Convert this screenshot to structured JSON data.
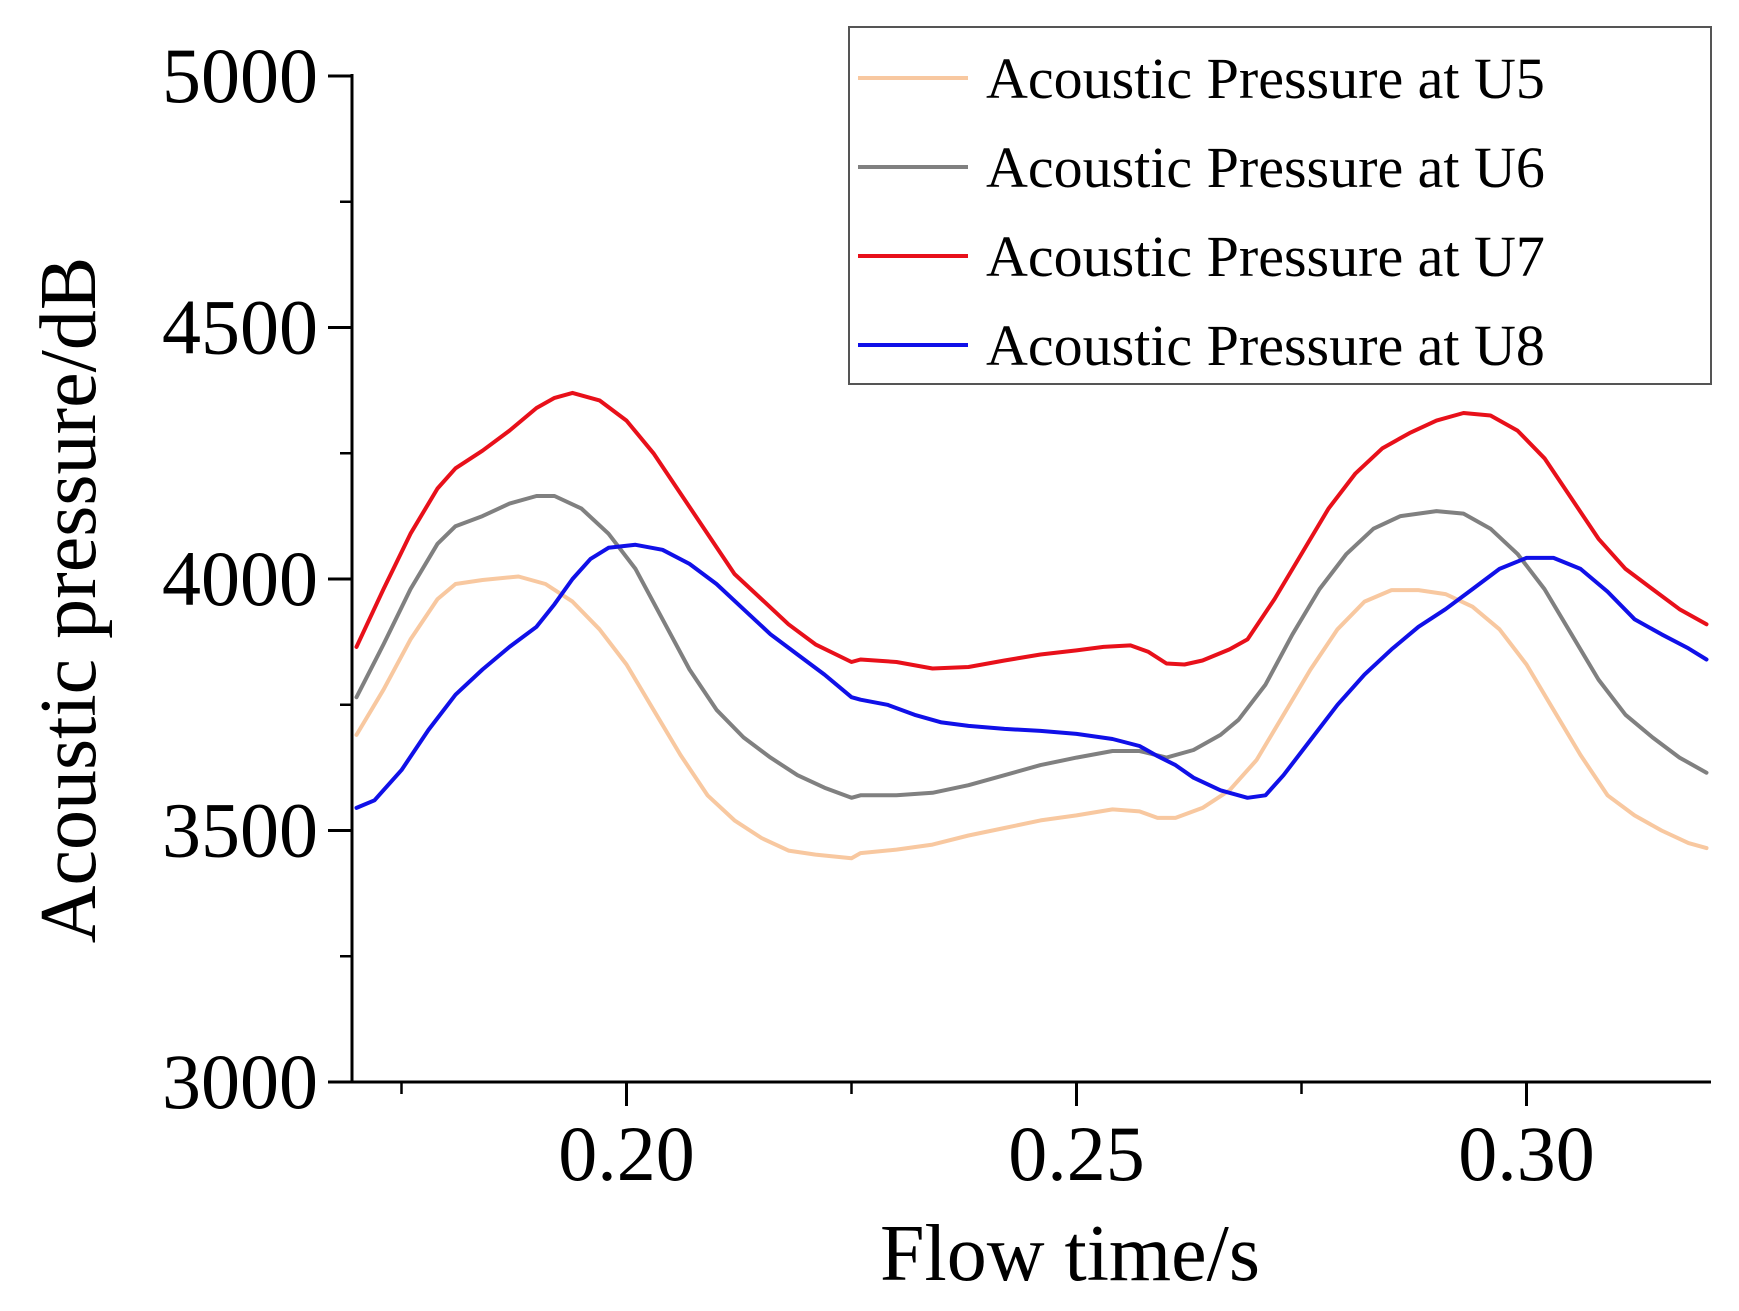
{
  "chart_data": {
    "type": "line",
    "title": "",
    "xlabel": "Flow time/s",
    "ylabel": "Acoustic pressure/dB",
    "xlim": [
      0.1695,
      0.3205
    ],
    "ylim": [
      3000,
      5000
    ],
    "xticks": [
      {
        "value": 0.2,
        "label": "0.20"
      },
      {
        "value": 0.25,
        "label": "0.25"
      },
      {
        "value": 0.3,
        "label": "0.30"
      }
    ],
    "yticks": [
      {
        "value": 3000,
        "label": "3000"
      },
      {
        "value": 3500,
        "label": "3500"
      },
      {
        "value": 4000,
        "label": "4000"
      },
      {
        "value": 4500,
        "label": "4500"
      },
      {
        "value": 5000,
        "label": "5000"
      }
    ],
    "x_minor_step": 0.025,
    "y_minor_step": 250,
    "grid": false,
    "legend_position": "top-right",
    "series": [
      {
        "name": "Acoustic Pressure at U5",
        "color": "#f8c8a0",
        "points": [
          [
            0.17,
            3690
          ],
          [
            0.173,
            3780
          ],
          [
            0.176,
            3880
          ],
          [
            0.179,
            3960
          ],
          [
            0.181,
            3990
          ],
          [
            0.184,
            3998
          ],
          [
            0.188,
            4005
          ],
          [
            0.191,
            3990
          ],
          [
            0.194,
            3955
          ],
          [
            0.197,
            3900
          ],
          [
            0.2,
            3830
          ],
          [
            0.203,
            3740
          ],
          [
            0.206,
            3650
          ],
          [
            0.209,
            3570
          ],
          [
            0.212,
            3520
          ],
          [
            0.215,
            3485
          ],
          [
            0.218,
            3460
          ],
          [
            0.221,
            3452
          ],
          [
            0.225,
            3445
          ],
          [
            0.226,
            3455
          ],
          [
            0.23,
            3462
          ],
          [
            0.234,
            3472
          ],
          [
            0.238,
            3490
          ],
          [
            0.242,
            3505
          ],
          [
            0.246,
            3520
          ],
          [
            0.25,
            3530
          ],
          [
            0.254,
            3542
          ],
          [
            0.257,
            3538
          ],
          [
            0.259,
            3525
          ],
          [
            0.261,
            3525
          ],
          [
            0.264,
            3545
          ],
          [
            0.267,
            3580
          ],
          [
            0.27,
            3640
          ],
          [
            0.273,
            3730
          ],
          [
            0.276,
            3820
          ],
          [
            0.279,
            3900
          ],
          [
            0.282,
            3955
          ],
          [
            0.285,
            3978
          ],
          [
            0.288,
            3978
          ],
          [
            0.291,
            3970
          ],
          [
            0.294,
            3945
          ],
          [
            0.297,
            3900
          ],
          [
            0.3,
            3830
          ],
          [
            0.303,
            3740
          ],
          [
            0.306,
            3650
          ],
          [
            0.309,
            3570
          ],
          [
            0.312,
            3530
          ],
          [
            0.315,
            3500
          ],
          [
            0.318,
            3475
          ],
          [
            0.32,
            3465
          ]
        ]
      },
      {
        "name": "Acoustic Pressure at U6",
        "color": "#808080",
        "points": [
          [
            0.17,
            3765
          ],
          [
            0.173,
            3870
          ],
          [
            0.176,
            3980
          ],
          [
            0.179,
            4070
          ],
          [
            0.181,
            4105
          ],
          [
            0.184,
            4125
          ],
          [
            0.187,
            4150
          ],
          [
            0.19,
            4165
          ],
          [
            0.192,
            4165
          ],
          [
            0.195,
            4140
          ],
          [
            0.198,
            4090
          ],
          [
            0.201,
            4020
          ],
          [
            0.204,
            3920
          ],
          [
            0.207,
            3820
          ],
          [
            0.21,
            3740
          ],
          [
            0.213,
            3685
          ],
          [
            0.216,
            3645
          ],
          [
            0.219,
            3610
          ],
          [
            0.222,
            3585
          ],
          [
            0.225,
            3565
          ],
          [
            0.226,
            3570
          ],
          [
            0.23,
            3570
          ],
          [
            0.234,
            3575
          ],
          [
            0.238,
            3590
          ],
          [
            0.242,
            3610
          ],
          [
            0.246,
            3630
          ],
          [
            0.25,
            3645
          ],
          [
            0.254,
            3658
          ],
          [
            0.257,
            3658
          ],
          [
            0.26,
            3645
          ],
          [
            0.263,
            3660
          ],
          [
            0.266,
            3690
          ],
          [
            0.268,
            3720
          ],
          [
            0.271,
            3790
          ],
          [
            0.274,
            3890
          ],
          [
            0.277,
            3980
          ],
          [
            0.28,
            4050
          ],
          [
            0.283,
            4100
          ],
          [
            0.286,
            4125
          ],
          [
            0.29,
            4135
          ],
          [
            0.293,
            4130
          ],
          [
            0.296,
            4100
          ],
          [
            0.299,
            4050
          ],
          [
            0.302,
            3980
          ],
          [
            0.305,
            3890
          ],
          [
            0.308,
            3800
          ],
          [
            0.311,
            3730
          ],
          [
            0.314,
            3685
          ],
          [
            0.317,
            3645
          ],
          [
            0.32,
            3615
          ]
        ]
      },
      {
        "name": "Acoustic Pressure at U7",
        "color": "#e8101a",
        "points": [
          [
            0.17,
            3865
          ],
          [
            0.173,
            3980
          ],
          [
            0.176,
            4090
          ],
          [
            0.179,
            4180
          ],
          [
            0.181,
            4220
          ],
          [
            0.184,
            4255
          ],
          [
            0.187,
            4295
          ],
          [
            0.19,
            4340
          ],
          [
            0.192,
            4360
          ],
          [
            0.194,
            4370
          ],
          [
            0.197,
            4355
          ],
          [
            0.2,
            4315
          ],
          [
            0.203,
            4250
          ],
          [
            0.206,
            4170
          ],
          [
            0.209,
            4090
          ],
          [
            0.212,
            4010
          ],
          [
            0.215,
            3960
          ],
          [
            0.218,
            3910
          ],
          [
            0.221,
            3870
          ],
          [
            0.225,
            3835
          ],
          [
            0.226,
            3840
          ],
          [
            0.23,
            3835
          ],
          [
            0.234,
            3822
          ],
          [
            0.238,
            3825
          ],
          [
            0.242,
            3838
          ],
          [
            0.246,
            3850
          ],
          [
            0.25,
            3858
          ],
          [
            0.253,
            3865
          ],
          [
            0.256,
            3868
          ],
          [
            0.258,
            3855
          ],
          [
            0.26,
            3832
          ],
          [
            0.262,
            3830
          ],
          [
            0.264,
            3838
          ],
          [
            0.267,
            3860
          ],
          [
            0.269,
            3880
          ],
          [
            0.272,
            3960
          ],
          [
            0.275,
            4050
          ],
          [
            0.278,
            4140
          ],
          [
            0.281,
            4210
          ],
          [
            0.284,
            4260
          ],
          [
            0.287,
            4290
          ],
          [
            0.29,
            4315
          ],
          [
            0.293,
            4330
          ],
          [
            0.296,
            4325
          ],
          [
            0.299,
            4295
          ],
          [
            0.302,
            4240
          ],
          [
            0.305,
            4160
          ],
          [
            0.308,
            4080
          ],
          [
            0.311,
            4020
          ],
          [
            0.314,
            3980
          ],
          [
            0.317,
            3940
          ],
          [
            0.32,
            3910
          ]
        ]
      },
      {
        "name": "Acoustic Pressure at U8",
        "color": "#1010e8",
        "points": [
          [
            0.17,
            3545
          ],
          [
            0.172,
            3560
          ],
          [
            0.175,
            3620
          ],
          [
            0.178,
            3700
          ],
          [
            0.181,
            3770
          ],
          [
            0.184,
            3820
          ],
          [
            0.187,
            3865
          ],
          [
            0.19,
            3905
          ],
          [
            0.192,
            3950
          ],
          [
            0.194,
            4000
          ],
          [
            0.196,
            4040
          ],
          [
            0.198,
            4062
          ],
          [
            0.201,
            4068
          ],
          [
            0.204,
            4058
          ],
          [
            0.207,
            4030
          ],
          [
            0.21,
            3990
          ],
          [
            0.213,
            3940
          ],
          [
            0.216,
            3890
          ],
          [
            0.219,
            3850
          ],
          [
            0.222,
            3810
          ],
          [
            0.225,
            3765
          ],
          [
            0.226,
            3760
          ],
          [
            0.229,
            3750
          ],
          [
            0.232,
            3730
          ],
          [
            0.235,
            3715
          ],
          [
            0.238,
            3708
          ],
          [
            0.242,
            3702
          ],
          [
            0.246,
            3698
          ],
          [
            0.25,
            3692
          ],
          [
            0.254,
            3682
          ],
          [
            0.257,
            3668
          ],
          [
            0.259,
            3648
          ],
          [
            0.261,
            3630
          ],
          [
            0.263,
            3605
          ],
          [
            0.266,
            3580
          ],
          [
            0.269,
            3565
          ],
          [
            0.271,
            3570
          ],
          [
            0.273,
            3610
          ],
          [
            0.276,
            3680
          ],
          [
            0.279,
            3750
          ],
          [
            0.282,
            3810
          ],
          [
            0.285,
            3860
          ],
          [
            0.288,
            3905
          ],
          [
            0.291,
            3940
          ],
          [
            0.294,
            3980
          ],
          [
            0.297,
            4020
          ],
          [
            0.3,
            4042
          ],
          [
            0.303,
            4042
          ],
          [
            0.306,
            4020
          ],
          [
            0.309,
            3975
          ],
          [
            0.312,
            3920
          ],
          [
            0.315,
            3890
          ],
          [
            0.318,
            3862
          ],
          [
            0.32,
            3840
          ]
        ]
      }
    ]
  }
}
